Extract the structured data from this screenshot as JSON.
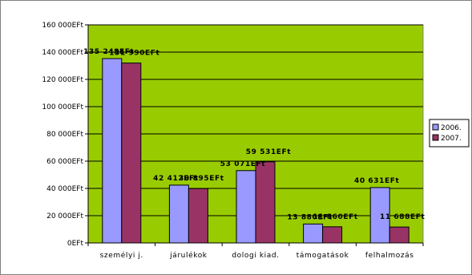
{
  "chart_data": {
    "type": "bar",
    "categories": [
      "személyi j.",
      "járulékok",
      "dologi kiad.",
      "támogatások",
      "felhalmozás"
    ],
    "series": [
      {
        "name": "2006.",
        "values": [
          135248,
          42412,
          53071,
          13880,
          40631
        ],
        "labels": [
          "135 248EFt",
          "42 412EFt",
          "53 071EFt",
          "13 880EFt",
          "40 631EFt"
        ]
      },
      {
        "name": "2007.",
        "values": [
          131990,
          39895,
          59531,
          11860,
          11688
        ],
        "labels": [
          "131 990EFt",
          "39 895EFt",
          "59 531EFt",
          "11 860EFt",
          "11 688EFt"
        ]
      }
    ],
    "ylim": [
      0,
      160000
    ],
    "yticks": [
      {
        "value": 0,
        "label": "0EFt"
      },
      {
        "value": 20000,
        "label": "20 000EFt"
      },
      {
        "value": 40000,
        "label": "40 000EFt"
      },
      {
        "value": 60000,
        "label": "60 000EFt"
      },
      {
        "value": 80000,
        "label": "80 000EFt"
      },
      {
        "value": 100000,
        "label": "100 000EFt"
      },
      {
        "value": 120000,
        "label": "120 000EFt"
      },
      {
        "value": 140000,
        "label": "140 000EFt"
      },
      {
        "value": 160000,
        "label": "160 000EFt"
      }
    ],
    "grid": true,
    "legend_position": "right",
    "colors": {
      "plot_background": "#99CC00",
      "series": [
        "#9999FF",
        "#993366"
      ],
      "gridline": "#000000",
      "bar_outline": "#000000"
    }
  }
}
